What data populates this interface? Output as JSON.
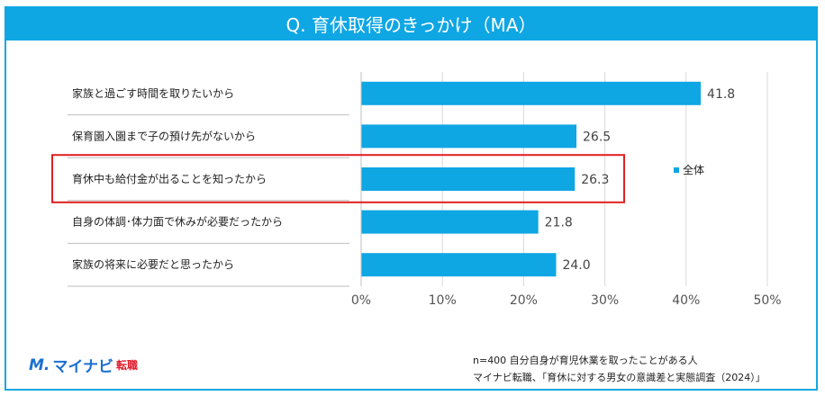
{
  "header": {
    "title": "Q. 育休取得のきっかけ（MA）"
  },
  "chart_data": {
    "type": "bar",
    "orientation": "horizontal",
    "categories": [
      "家族と過ごす時間を取りたいから",
      "保育園入園まで子の預け先がないから",
      "育休中も給付金が出ることを知ったから",
      "自身の体調･体力面で休みが必要だったから",
      "家族の将来に必要だと思ったから"
    ],
    "series": [
      {
        "name": "全体",
        "values": [
          41.8,
          26.5,
          26.3,
          21.8,
          24.0
        ],
        "color": "#0fa6e4"
      }
    ],
    "data_labels": [
      "41.8",
      "26.5",
      "26.3",
      "21.8",
      "24.0"
    ],
    "xlim": [
      0,
      50
    ],
    "ticks": [
      "0%",
      "10%",
      "20%",
      "30%",
      "40%",
      "50%"
    ],
    "grid": true,
    "legend": "right",
    "highlight_index": 2,
    "highlight_color": "#e02020"
  },
  "footer": {
    "logo_mark": "M.",
    "logo_text": "マイナビ",
    "logo_sub": "転職",
    "sample": "n=400 自分自身が育児休業を取ったことがある人",
    "source": "マイナビ転職、「育休に対する男女の意識差と実態調査（2024）」"
  }
}
